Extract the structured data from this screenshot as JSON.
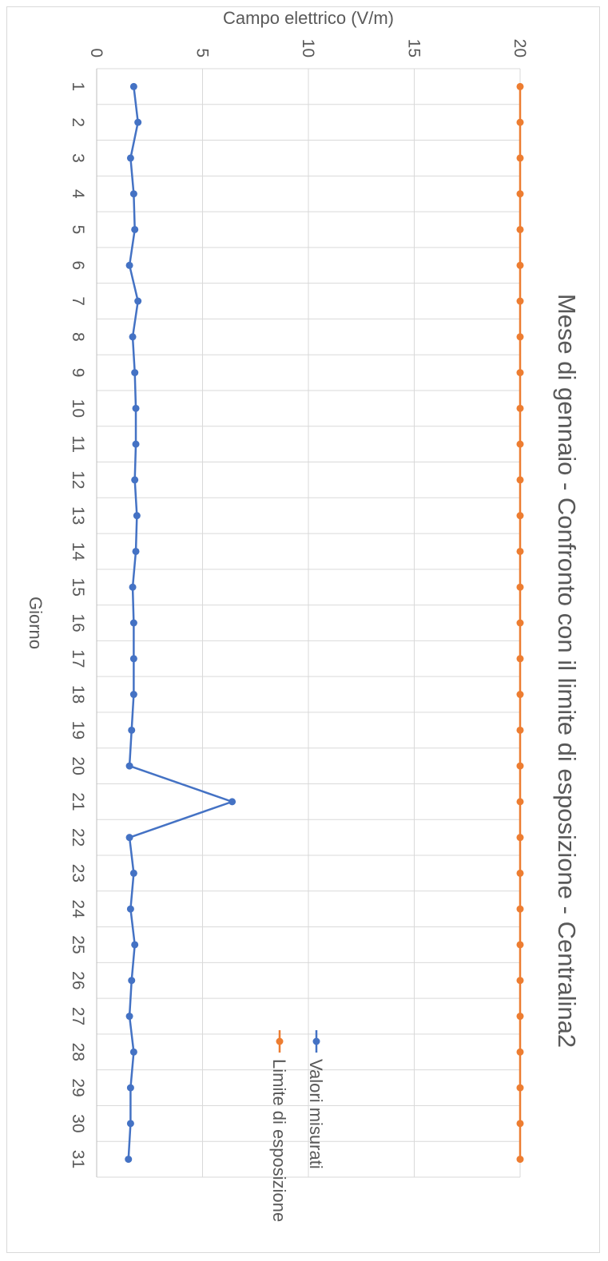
{
  "chart_data": {
    "type": "line",
    "title": "Mese di gennaio - Confronto con il limite di esposizione - Centralina2",
    "xlabel": "Giorno",
    "ylabel": "Campo elettrico (V/m)",
    "categories": [
      "1",
      "2",
      "3",
      "4",
      "5",
      "6",
      "7",
      "8",
      "9",
      "10",
      "11",
      "12",
      "13",
      "14",
      "15",
      "16",
      "17",
      "18",
      "19",
      "20",
      "21",
      "22",
      "23",
      "24",
      "25",
      "26",
      "27",
      "28",
      "29",
      "30",
      "31"
    ],
    "yticks": [
      "0",
      "5",
      "10",
      "15",
      "20"
    ],
    "ylim": [
      0,
      20
    ],
    "grid": true,
    "legend_position": "top-right",
    "series": [
      {
        "name": "Valori misurati",
        "color": "#4472c4",
        "values": [
          1.75,
          1.95,
          1.6,
          1.75,
          1.8,
          1.55,
          1.95,
          1.7,
          1.8,
          1.85,
          1.85,
          1.8,
          1.9,
          1.85,
          1.7,
          1.75,
          1.75,
          1.75,
          1.65,
          1.55,
          6.4,
          1.55,
          1.75,
          1.6,
          1.8,
          1.65,
          1.55,
          1.75,
          1.6,
          1.6,
          1.5
        ]
      },
      {
        "name": "Limite di esposizione",
        "color": "#ed7d31",
        "values": [
          20,
          20,
          20,
          20,
          20,
          20,
          20,
          20,
          20,
          20,
          20,
          20,
          20,
          20,
          20,
          20,
          20,
          20,
          20,
          20,
          20,
          20,
          20,
          20,
          20,
          20,
          20,
          20,
          20,
          20,
          20
        ]
      }
    ]
  }
}
